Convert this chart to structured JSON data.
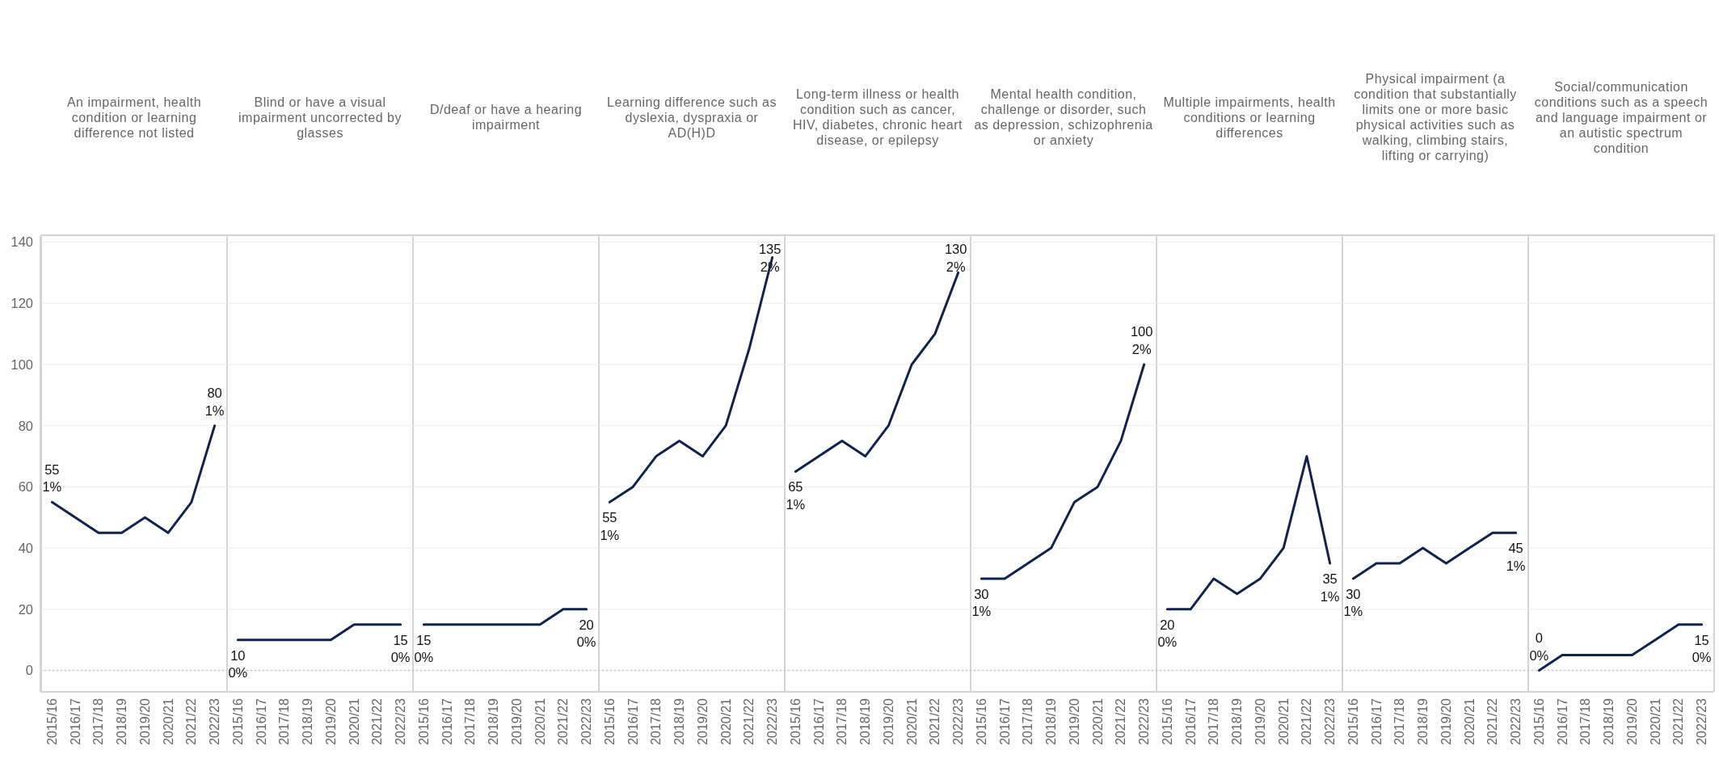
{
  "chart_data": [
    {
      "type": "line",
      "title": "An impairment, health condition or learning difference not listed",
      "categories": [
        "2015/16",
        "2016/17",
        "2017/18",
        "2018/19",
        "2019/20",
        "2020/21",
        "2021/22",
        "2022/23"
      ],
      "values": [
        55,
        50,
        45,
        45,
        50,
        45,
        55,
        80
      ],
      "value_labels": [
        "55\n1%",
        null,
        null,
        null,
        null,
        null,
        null,
        "80\n1%"
      ],
      "color": "#10234f",
      "ylim": [
        -7,
        142
      ],
      "yticks": [
        0,
        20,
        40,
        60,
        80,
        100,
        120,
        140
      ],
      "grid": "y",
      "ref_lines": [
        {
          "axis": "y",
          "value": 0,
          "line_style": "dotted",
          "color": "#c4c4c4"
        }
      ]
    },
    {
      "type": "line",
      "title": "Blind or have a visual impairment uncorrected by glasses",
      "categories": [
        "2015/16",
        "2016/17",
        "2017/18",
        "2018/19",
        "2019/20",
        "2020/21",
        "2021/22",
        "2022/23"
      ],
      "values": [
        10,
        10,
        10,
        10,
        10,
        15,
        15,
        15
      ],
      "value_labels": [
        "10\n0%",
        null,
        null,
        null,
        null,
        null,
        null,
        "15\n0%"
      ],
      "color": "#10234f",
      "ylim": [
        -7,
        142
      ],
      "yticks": [
        0,
        20,
        40,
        60,
        80,
        100,
        120,
        140
      ],
      "grid": "y",
      "ref_lines": [
        {
          "axis": "y",
          "value": 0,
          "line_style": "dotted",
          "color": "#c4c4c4"
        }
      ],
      "tick_labels": "x"
    },
    {
      "type": "line",
      "title": "D/deaf or have a hearing impairment",
      "categories": [
        "2015/16",
        "2016/17",
        "2017/18",
        "2018/19",
        "2019/20",
        "2020/21",
        "2021/22",
        "2022/23"
      ],
      "values": [
        15,
        15,
        15,
        15,
        15,
        15,
        20,
        20
      ],
      "value_labels": [
        "15\n0%",
        null,
        null,
        null,
        null,
        null,
        null,
        "20\n0%"
      ],
      "color": "#10234f",
      "ylim": [
        -7,
        142
      ],
      "yticks": [
        0,
        20,
        40,
        60,
        80,
        100,
        120,
        140
      ],
      "grid": "y",
      "ref_lines": [
        {
          "axis": "y",
          "value": 0,
          "line_style": "dotted",
          "color": "#c4c4c4"
        }
      ],
      "tick_labels": "x"
    },
    {
      "type": "line",
      "title": "Learning difference such as dyslexia, dyspraxia or AD(H)D",
      "categories": [
        "2015/16",
        "2016/17",
        "2017/18",
        "2018/19",
        "2019/20",
        "2020/21",
        "2021/22",
        "2022/23"
      ],
      "values": [
        55,
        60,
        70,
        75,
        70,
        80,
        105,
        135
      ],
      "value_labels": [
        "55\n1%",
        null,
        null,
        null,
        null,
        null,
        null,
        "135\n2%"
      ],
      "color": "#10234f",
      "ylim": [
        -7,
        142
      ],
      "yticks": [
        0,
        20,
        40,
        60,
        80,
        100,
        120,
        140
      ],
      "grid": "y",
      "ref_lines": [
        {
          "axis": "y",
          "value": 0,
          "line_style": "dotted",
          "color": "#c4c4c4"
        }
      ],
      "tick_labels": "x"
    },
    {
      "type": "line",
      "title": "Long-term illness or health condition such as cancer, HIV, diabetes, chronic heart disease, or epilepsy",
      "categories": [
        "2015/16",
        "2016/17",
        "2017/18",
        "2018/19",
        "2019/20",
        "2020/21",
        "2021/22",
        "2022/23"
      ],
      "values": [
        65,
        70,
        75,
        70,
        80,
        100,
        110,
        130
      ],
      "value_labels": [
        "65\n1%",
        null,
        null,
        null,
        null,
        null,
        null,
        "130\n2%"
      ],
      "color": "#10234f",
      "ylim": [
        -7,
        142
      ],
      "yticks": [
        0,
        20,
        40,
        60,
        80,
        100,
        120,
        140
      ],
      "grid": "y",
      "ref_lines": [
        {
          "axis": "y",
          "value": 0,
          "line_style": "dotted",
          "color": "#c4c4c4"
        }
      ],
      "tick_labels": "x"
    },
    {
      "type": "line",
      "title": "Mental health condition, challenge or disorder, such as depression, schizophrenia or anxiety",
      "categories": [
        "2015/16",
        "2016/17",
        "2017/18",
        "2018/19",
        "2019/20",
        "2020/21",
        "2021/22",
        "2022/23"
      ],
      "values": [
        30,
        30,
        35,
        40,
        55,
        60,
        75,
        100
      ],
      "value_labels": [
        "30\n1%",
        null,
        null,
        null,
        null,
        null,
        null,
        "100\n2%"
      ],
      "color": "#10234f",
      "ylim": [
        -7,
        142
      ],
      "yticks": [
        0,
        20,
        40,
        60,
        80,
        100,
        120,
        140
      ],
      "grid": "y",
      "ref_lines": [
        {
          "axis": "y",
          "value": 0,
          "line_style": "dotted",
          "color": "#c4c4c4"
        }
      ],
      "tick_labels": "x"
    },
    {
      "type": "line",
      "title": "Multiple impairments, health conditions or learning differences",
      "categories": [
        "2015/16",
        "2016/17",
        "2017/18",
        "2018/19",
        "2019/20",
        "2020/21",
        "2021/22",
        "2022/23"
      ],
      "values": [
        20,
        20,
        30,
        25,
        30,
        40,
        70,
        35
      ],
      "value_labels": [
        "20\n0%",
        null,
        null,
        null,
        null,
        null,
        null,
        "35\n1%"
      ],
      "color": "#10234f",
      "ylim": [
        -7,
        142
      ],
      "yticks": [
        0,
        20,
        40,
        60,
        80,
        100,
        120,
        140
      ],
      "grid": "y",
      "ref_lines": [
        {
          "axis": "y",
          "value": 0,
          "line_style": "dotted",
          "color": "#c4c4c4"
        }
      ],
      "tick_labels": "x"
    },
    {
      "type": "line",
      "title": "Physical impairment (a condition that substantially limits one or more basic physical activities such as walking, climbing stairs, lifting or carrying)",
      "categories": [
        "2015/16",
        "2016/17",
        "2017/18",
        "2018/19",
        "2019/20",
        "2020/21",
        "2021/22",
        "2022/23"
      ],
      "values": [
        30,
        35,
        35,
        40,
        35,
        40,
        45,
        45
      ],
      "value_labels": [
        "30\n1%",
        null,
        null,
        null,
        null,
        null,
        null,
        "45\n1%"
      ],
      "color": "#10234f",
      "ylim": [
        -7,
        142
      ],
      "yticks": [
        0,
        20,
        40,
        60,
        80,
        100,
        120,
        140
      ],
      "grid": "y",
      "ref_lines": [
        {
          "axis": "y",
          "value": 0,
          "line_style": "dotted",
          "color": "#c4c4c4"
        }
      ],
      "tick_labels": "x"
    },
    {
      "type": "line",
      "title": "Social/communication conditions such as a speech and language impairment or an autistic spectrum condition",
      "categories": [
        "2015/16",
        "2016/17",
        "2017/18",
        "2018/19",
        "2019/20",
        "2020/21",
        "2021/22",
        "2022/23"
      ],
      "values": [
        0,
        5,
        5,
        5,
        5,
        10,
        15,
        15
      ],
      "value_labels": [
        "0\n0%",
        null,
        null,
        null,
        null,
        null,
        null,
        "15\n0%"
      ],
      "color": "#10234f",
      "ylim": [
        -7,
        142
      ],
      "yticks": [
        0,
        20,
        40,
        60,
        80,
        100,
        120,
        140
      ],
      "grid": "y",
      "ref_lines": [
        {
          "axis": "y",
          "value": 0,
          "line_style": "dotted",
          "color": "#c4c4c4"
        }
      ],
      "tick_labels": "x"
    }
  ]
}
